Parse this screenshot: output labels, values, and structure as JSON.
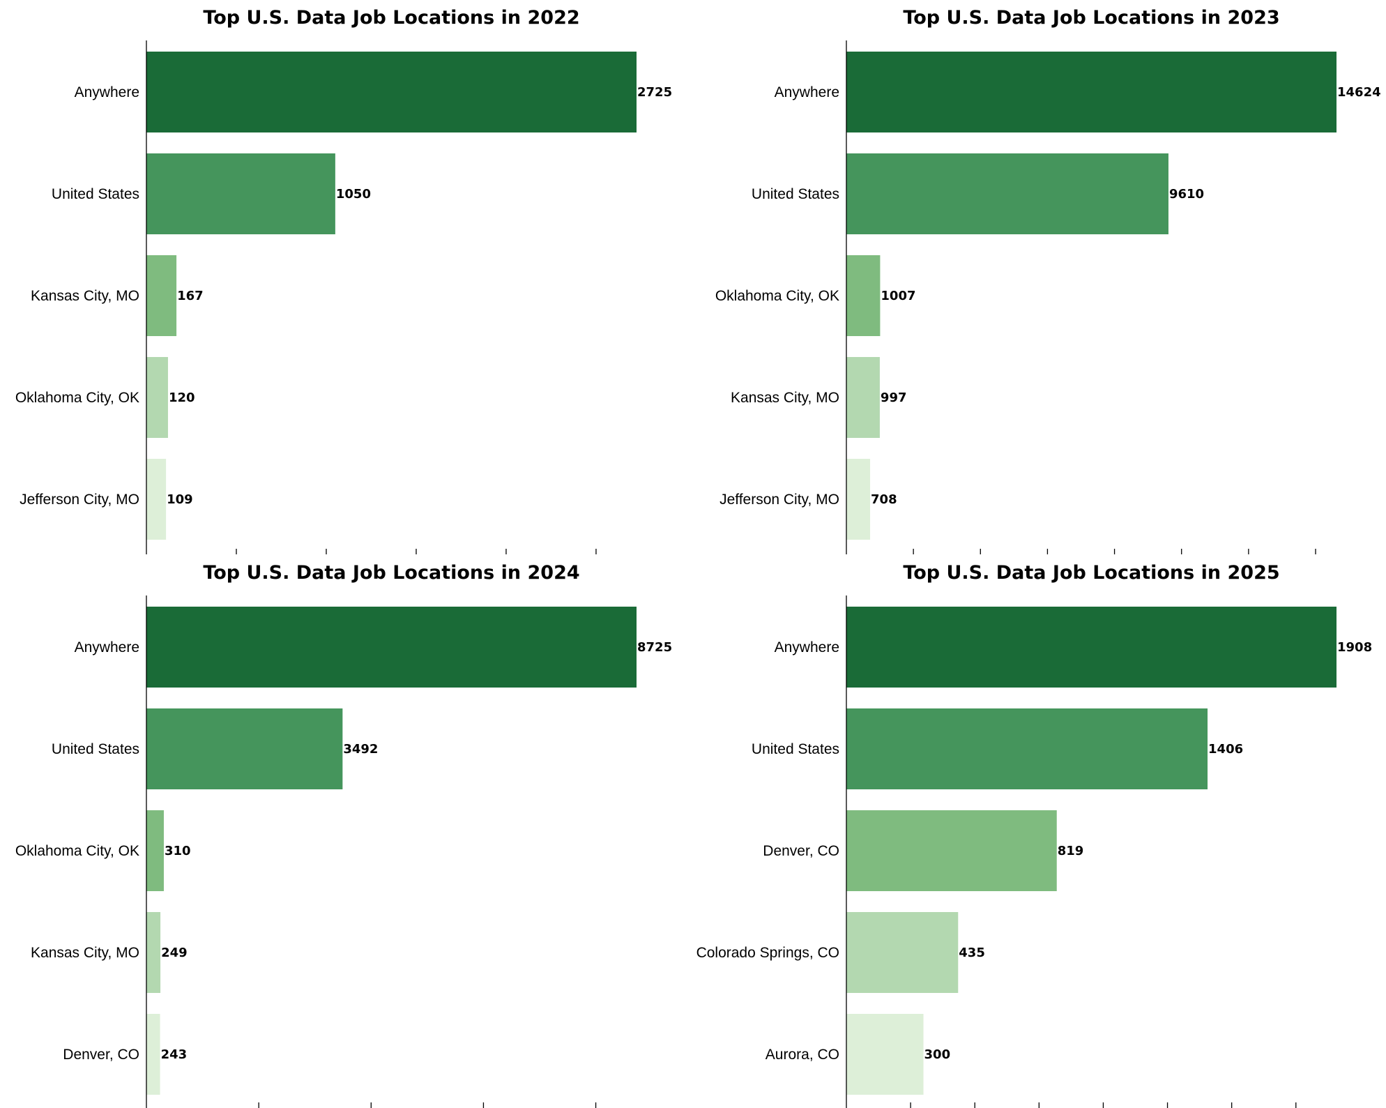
{
  "chart_data": [
    {
      "type": "bar",
      "orientation": "horizontal",
      "title": "Top U.S. Data Job Locations in 2022",
      "categories": [
        "Anywhere",
        "United States",
        "Kansas City, MO",
        "Oklahoma City, OK",
        "Jefferson City, MO"
      ],
      "values": [
        2725,
        1050,
        167,
        120,
        109
      ],
      "xlim": [
        0,
        2725
      ],
      "xticks": [
        0,
        500,
        1000,
        1500,
        2000,
        2500
      ],
      "grid": false
    },
    {
      "type": "bar",
      "orientation": "horizontal",
      "title": "Top U.S. Data Job Locations in 2023",
      "categories": [
        "Anywhere",
        "United States",
        "Oklahoma City, OK",
        "Kansas City, MO",
        "Jefferson City, MO"
      ],
      "values": [
        14624,
        9610,
        1007,
        997,
        708
      ],
      "xlim": [
        0,
        14624
      ],
      "xticks": [
        0,
        2000,
        4000,
        6000,
        8000,
        10000,
        12000,
        14000
      ],
      "grid": false
    },
    {
      "type": "bar",
      "orientation": "horizontal",
      "title": "Top U.S. Data Job Locations in 2024",
      "categories": [
        "Anywhere",
        "United States",
        "Oklahoma City, OK",
        "Kansas City, MO",
        "Denver, CO"
      ],
      "values": [
        8725,
        3492,
        310,
        249,
        243
      ],
      "xlim": [
        0,
        8725
      ],
      "xticks": [
        0,
        2000,
        4000,
        6000,
        8000
      ],
      "grid": false
    },
    {
      "type": "bar",
      "orientation": "horizontal",
      "title": "Top U.S. Data Job Locations in 2025",
      "categories": [
        "Anywhere",
        "United States",
        "Denver, CO",
        "Colorado Springs, CO",
        "Aurora, CO"
      ],
      "values": [
        1908,
        1406,
        819,
        435,
        300
      ],
      "xlim": [
        0,
        1908
      ],
      "xticks": [
        0,
        250,
        500,
        750,
        1000,
        1250,
        1500,
        1750
      ],
      "grid": false
    }
  ],
  "colors": [
    "#1a6b37",
    "#45955c",
    "#7fbb7f",
    "#b3d8b0",
    "#ddefd8"
  ]
}
